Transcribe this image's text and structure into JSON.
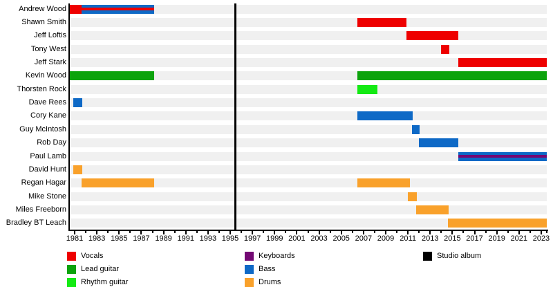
{
  "chart_data": {
    "type": "timeline",
    "axis": {
      "start": 1980.5,
      "end": 2023.5,
      "labeled_years": [
        1981,
        1983,
        1985,
        1987,
        1989,
        1991,
        1993,
        1995,
        1997,
        1999,
        2001,
        2003,
        2005,
        2007,
        2009,
        2011,
        2013,
        2015,
        2017,
        2019,
        2021,
        2023
      ],
      "minor_years": [
        1982,
        1984,
        1986,
        1988,
        1990,
        1992,
        1994,
        1996,
        1998,
        2000,
        2002,
        2004,
        2006,
        2008,
        2010,
        2012,
        2014,
        2016,
        2018,
        2020,
        2022,
        2023.5
      ]
    },
    "members": [
      {
        "name": "Andrew Wood",
        "segments": [
          {
            "role": "Vocals",
            "start": 1980.5,
            "end": 1981.65
          },
          {
            "role": "Bass",
            "stripe": "Vocals",
            "start": 1981.65,
            "end": 1988.15
          }
        ]
      },
      {
        "name": "Shawn Smith",
        "segments": [
          {
            "role": "Vocals",
            "start": 2006.45,
            "end": 2010.85
          }
        ]
      },
      {
        "name": "Jeff Loftis",
        "segments": [
          {
            "role": "Vocals",
            "start": 2010.85,
            "end": 2015.55
          }
        ]
      },
      {
        "name": "Tony West",
        "segments": [
          {
            "role": "Vocals",
            "start": 2013.95,
            "end": 2014.7
          }
        ]
      },
      {
        "name": "Jeff Stark",
        "segments": [
          {
            "role": "Vocals",
            "start": 2015.55,
            "end": 2023.5
          }
        ]
      },
      {
        "name": "Kevin Wood",
        "segments": [
          {
            "role": "Lead guitar",
            "start": 1980.5,
            "end": 1988.15
          },
          {
            "role": "Lead guitar",
            "start": 2006.45,
            "end": 2023.5
          }
        ]
      },
      {
        "name": "Thorsten Rock",
        "segments": [
          {
            "role": "Rhythm guitar",
            "start": 2006.45,
            "end": 2008.25
          }
        ]
      },
      {
        "name": "Dave Rees",
        "segments": [
          {
            "role": "Bass",
            "start": 1980.9,
            "end": 1981.7
          }
        ]
      },
      {
        "name": "Cory Kane",
        "segments": [
          {
            "role": "Bass",
            "start": 2006.45,
            "end": 2011.4
          }
        ]
      },
      {
        "name": "Guy McIntosh",
        "segments": [
          {
            "role": "Bass",
            "start": 2011.35,
            "end": 2012.05
          }
        ]
      },
      {
        "name": "Rob Day",
        "segments": [
          {
            "role": "Bass",
            "start": 2012.0,
            "end": 2015.55
          }
        ]
      },
      {
        "name": "Paul Lamb",
        "segments": [
          {
            "role": "Bass",
            "stripe": "Keyboards",
            "start": 2015.55,
            "end": 2023.5
          }
        ]
      },
      {
        "name": "David Hunt",
        "segments": [
          {
            "role": "Drums",
            "start": 1980.9,
            "end": 1981.7
          }
        ]
      },
      {
        "name": "Regan Hagar",
        "segments": [
          {
            "role": "Drums",
            "start": 1981.65,
            "end": 1988.15
          },
          {
            "role": "Drums",
            "start": 2006.45,
            "end": 2011.15
          }
        ]
      },
      {
        "name": "Mike Stone",
        "segments": [
          {
            "role": "Drums",
            "start": 2011.0,
            "end": 2011.8
          }
        ]
      },
      {
        "name": "Miles Freeborn",
        "segments": [
          {
            "role": "Drums",
            "start": 2011.75,
            "end": 2014.65
          }
        ]
      },
      {
        "name": "Bradley BT Leach",
        "segments": [
          {
            "role": "Drums",
            "start": 2014.6,
            "end": 2023.5
          }
        ]
      }
    ],
    "album_lines": [
      {
        "year": 1995.45
      }
    ],
    "role_colors": {
      "Vocals": "#ee0000",
      "Lead guitar": "#0ca30c",
      "Rhythm guitar": "#14ea14",
      "Keyboards": "#730973",
      "Bass": "#0e69c6",
      "Drums": "#f9a12b",
      "Studio album": "#000000"
    },
    "legend": {
      "columns": [
        [
          "Vocals",
          "Lead guitar",
          "Rhythm guitar"
        ],
        [
          "Keyboards",
          "Bass",
          "Drums"
        ],
        [
          "Studio album"
        ]
      ]
    }
  }
}
